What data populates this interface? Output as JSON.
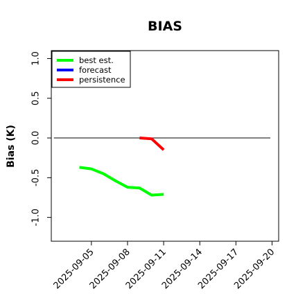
{
  "chart_data": {
    "type": "line",
    "title": "BIAS",
    "xlabel": "",
    "ylabel": "Bias (K)",
    "xlim": [
      "2025-09-02",
      "2025-09-20"
    ],
    "ylim": [
      -1.3,
      1.1
    ],
    "yticks": [
      -1.0,
      -0.5,
      0.0,
      0.5,
      1.0
    ],
    "ytick_labels": [
      "-1.0",
      "-0.5",
      "0.0",
      "0.5",
      "1.0"
    ],
    "xticks": [
      "2025-09-05",
      "2025-09-08",
      "2025-09-11",
      "2025-09-14",
      "2025-09-17",
      "2025-09-20"
    ],
    "highlighted_xtick": "2025-09-11",
    "highlight_color": "#228b22",
    "zero_line": true,
    "grid": false,
    "legend_position": "top-left",
    "series": [
      {
        "name": "best est.",
        "color": "#00ff00",
        "x": [
          "2025-09-04",
          "2025-09-05",
          "2025-09-06",
          "2025-09-07",
          "2025-09-08",
          "2025-09-09",
          "2025-09-10",
          "2025-09-11"
        ],
        "y": [
          -0.37,
          -0.39,
          -0.45,
          -0.54,
          -0.62,
          -0.63,
          -0.72,
          -0.71
        ]
      },
      {
        "name": "forecast",
        "color": "#0000ff",
        "x": [],
        "y": []
      },
      {
        "name": "persistence",
        "color": "#ff0000",
        "x": [
          "2025-09-09",
          "2025-09-10",
          "2025-09-11"
        ],
        "y": [
          0.0,
          -0.01,
          -0.15
        ]
      }
    ]
  }
}
